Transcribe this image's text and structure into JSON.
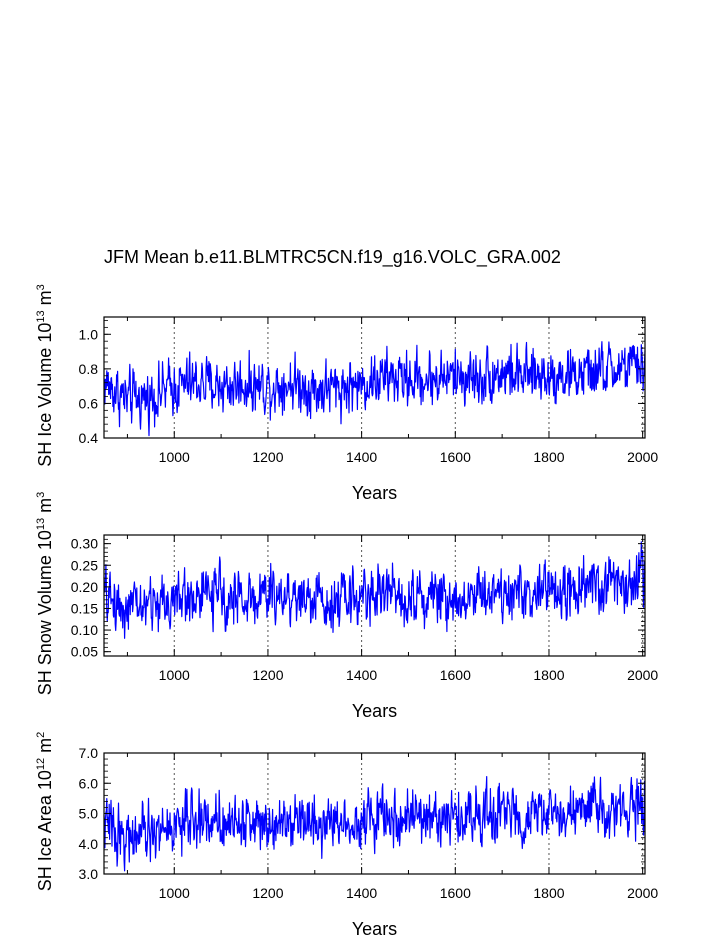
{
  "title": "JFM Mean b.e11.BLMTRC5CN.f19_g16.VOLC_GRA.002",
  "colors": {
    "series": "#0000ff",
    "axis": "#000000",
    "grid": "#555555"
  },
  "chart_data": [
    {
      "type": "line",
      "title": "",
      "xlabel": "Years",
      "ylabel": "SH Ice Volume 10",
      "ylabel_sup1": "13",
      "ylabel_mid": " m",
      "ylabel_sup2": "3",
      "xlim": [
        850,
        2005
      ],
      "ylim": [
        0.4,
        1.1
      ],
      "xticks": [
        "1000",
        "1200",
        "1400",
        "1600",
        "1800",
        "2000"
      ],
      "yticks": [
        "0.4",
        "0.6",
        "0.8",
        "1.0"
      ],
      "grid": "vertical dashed at x ticks",
      "series": [
        {
          "x": [
            850,
            900,
            950,
            1000,
            1050,
            1100,
            1150,
            1200,
            1250,
            1300,
            1350,
            1400,
            1450,
            1500,
            1550,
            1600,
            1650,
            1700,
            1750,
            1800,
            1850,
            1900,
            1950,
            2005
          ],
          "y": [
            0.72,
            0.62,
            0.64,
            0.7,
            0.72,
            0.7,
            0.71,
            0.7,
            0.72,
            0.68,
            0.69,
            0.71,
            0.75,
            0.74,
            0.74,
            0.76,
            0.75,
            0.78,
            0.75,
            0.77,
            0.76,
            0.78,
            0.8,
            0.82
          ]
        }
      ]
    },
    {
      "type": "line",
      "title": "",
      "xlabel": "Years",
      "ylabel": "SH Snow Volume 10",
      "ylabel_sup1": "13",
      "ylabel_mid": " m",
      "ylabel_sup2": "3",
      "xlim": [
        850,
        2005
      ],
      "ylim": [
        0.04,
        0.32
      ],
      "xticks": [
        "1000",
        "1200",
        "1400",
        "1600",
        "1800",
        "2000"
      ],
      "yticks": [
        "0.05",
        "0.10",
        "0.15",
        "0.20",
        "0.25",
        "0.30"
      ],
      "grid": "vertical dashed at x ticks",
      "series": [
        {
          "x": [
            850,
            900,
            950,
            1000,
            1050,
            1100,
            1150,
            1200,
            1250,
            1300,
            1350,
            1400,
            1450,
            1500,
            1550,
            1600,
            1650,
            1700,
            1750,
            1800,
            1850,
            1900,
            1950,
            2005
          ],
          "y": [
            0.18,
            0.15,
            0.16,
            0.17,
            0.18,
            0.18,
            0.17,
            0.18,
            0.18,
            0.17,
            0.17,
            0.18,
            0.19,
            0.18,
            0.18,
            0.17,
            0.19,
            0.19,
            0.18,
            0.19,
            0.19,
            0.2,
            0.21,
            0.22
          ]
        }
      ]
    },
    {
      "type": "line",
      "title": "",
      "xlabel": "Years",
      "ylabel": "SH Ice Area 10",
      "ylabel_sup1": "12",
      "ylabel_mid": " m",
      "ylabel_sup2": "2",
      "xlim": [
        850,
        2005
      ],
      "ylim": [
        3.0,
        7.0
      ],
      "xticks": [
        "1000",
        "1200",
        "1400",
        "1600",
        "1800",
        "2000"
      ],
      "yticks": [
        "3.0",
        "4.0",
        "5.0",
        "6.0",
        "7.0"
      ],
      "grid": "vertical dashed at x ticks",
      "series": [
        {
          "x": [
            850,
            900,
            950,
            1000,
            1050,
            1100,
            1150,
            1200,
            1250,
            1300,
            1350,
            1400,
            1450,
            1500,
            1550,
            1600,
            1650,
            1700,
            1750,
            1800,
            1850,
            1900,
            1950,
            2005
          ],
          "y": [
            4.7,
            4.2,
            4.3,
            4.6,
            4.8,
            4.8,
            4.7,
            4.8,
            4.9,
            4.7,
            4.7,
            4.8,
            4.9,
            4.8,
            4.9,
            4.8,
            5.0,
            5.0,
            4.9,
            5.0,
            5.0,
            5.1,
            5.2,
            5.3
          ]
        }
      ]
    }
  ]
}
